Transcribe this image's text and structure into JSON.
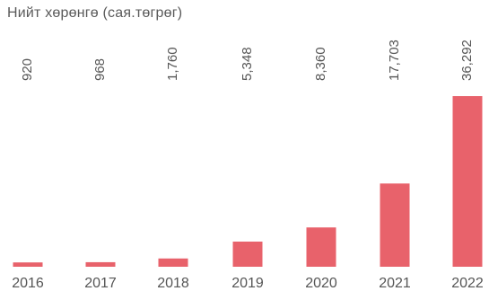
{
  "chart_data": {
    "type": "bar",
    "title": "Нийт хөрөнгө (сая.төгрөг)",
    "categories": [
      "2016",
      "2017",
      "2018",
      "2019",
      "2020",
      "2021",
      "2022"
    ],
    "values": [
      920,
      968,
      1760,
      5348,
      8360,
      17703,
      36292
    ],
    "value_labels": [
      "920",
      "968",
      "1,760",
      "5,348",
      "8,360",
      "17,703",
      "36,292"
    ],
    "xlabel": "",
    "ylabel": "",
    "ylim": [
      0,
      36292
    ],
    "grid": false,
    "bar_color": "#e8626b"
  }
}
